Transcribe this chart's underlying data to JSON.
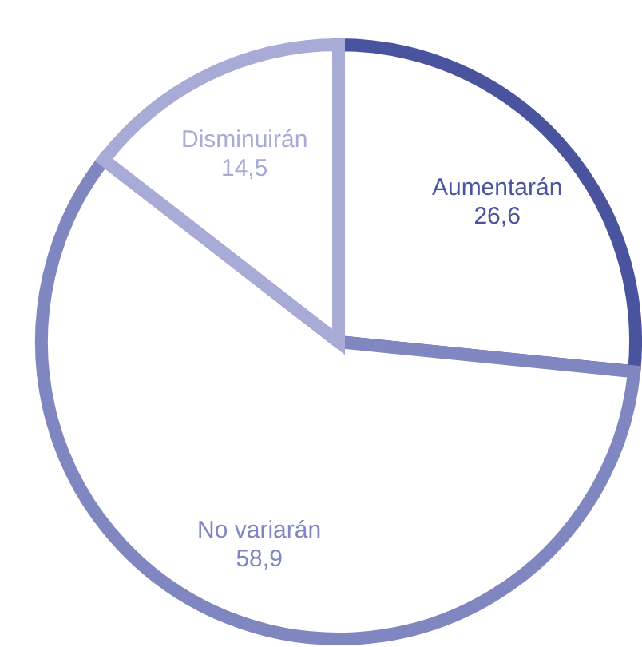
{
  "chart_data": {
    "type": "pie",
    "categories": [
      "Aumentarán",
      "No variarán",
      "Disminuirán"
    ],
    "values": [
      26.6,
      58.9,
      14.5
    ],
    "value_labels": [
      "26,6",
      "58,9",
      "14,5"
    ],
    "colors": [
      "#4a549e",
      "#7f86c0",
      "#a8abd6"
    ]
  }
}
